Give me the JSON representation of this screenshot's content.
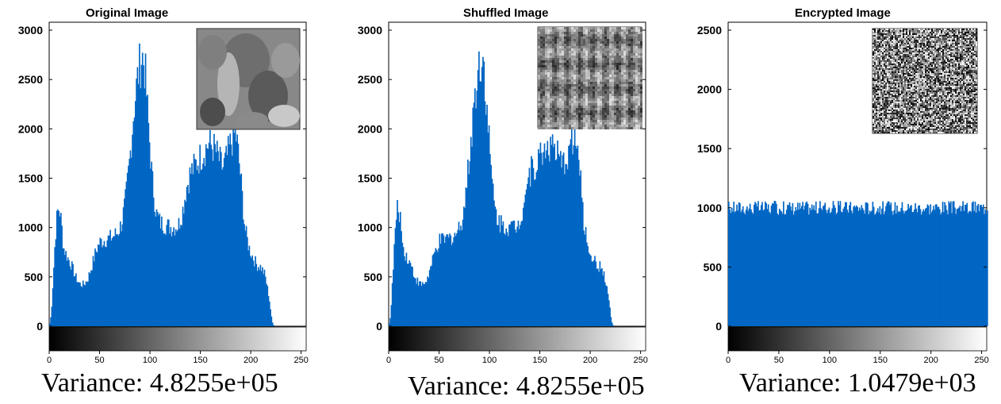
{
  "colors": {
    "bar": "#0066c4",
    "axis": "#000000",
    "background": "#ffffff"
  },
  "chart_data": [
    {
      "type": "bar",
      "title": "Original Image",
      "xlabel": "",
      "ylabel": "",
      "xlim": [
        0,
        255
      ],
      "ylim": [
        0,
        3000
      ],
      "yticks": [
        0,
        500,
        1000,
        1500,
        2000,
        2500,
        3000
      ],
      "xticks": [
        0,
        50,
        100,
        150,
        200,
        250
      ],
      "colorbar": "grayscale 0-255 below x axis",
      "inset": "grayscale peppers image, top-right",
      "variance_label": "Variance: 4.8255e+05",
      "profile": [
        [
          0,
          0
        ],
        [
          2,
          120
        ],
        [
          4,
          500
        ],
        [
          6,
          900
        ],
        [
          8,
          1150
        ],
        [
          10,
          1200
        ],
        [
          12,
          1050
        ],
        [
          14,
          800
        ],
        [
          18,
          700
        ],
        [
          22,
          620
        ],
        [
          26,
          500
        ],
        [
          30,
          430
        ],
        [
          34,
          420
        ],
        [
          38,
          470
        ],
        [
          42,
          600
        ],
        [
          46,
          750
        ],
        [
          50,
          850
        ],
        [
          56,
          880
        ],
        [
          62,
          900
        ],
        [
          68,
          950
        ],
        [
          72,
          1050
        ],
        [
          76,
          1300
        ],
        [
          80,
          1700
        ],
        [
          84,
          2200
        ],
        [
          88,
          2550
        ],
        [
          92,
          2750
        ],
        [
          95,
          2600
        ],
        [
          98,
          2100
        ],
        [
          102,
          1500
        ],
        [
          106,
          1150
        ],
        [
          110,
          1050
        ],
        [
          116,
          1020
        ],
        [
          122,
          1000
        ],
        [
          128,
          1020
        ],
        [
          132,
          1150
        ],
        [
          136,
          1400
        ],
        [
          140,
          1550
        ],
        [
          146,
          1650
        ],
        [
          152,
          1750
        ],
        [
          158,
          1850
        ],
        [
          164,
          1800
        ],
        [
          168,
          1700
        ],
        [
          172,
          1600
        ],
        [
          176,
          1700
        ],
        [
          180,
          1850
        ],
        [
          184,
          1950
        ],
        [
          186,
          1900
        ],
        [
          190,
          1500
        ],
        [
          194,
          1000
        ],
        [
          198,
          800
        ],
        [
          202,
          700
        ],
        [
          206,
          620
        ],
        [
          210,
          600
        ],
        [
          214,
          520
        ],
        [
          218,
          300
        ],
        [
          221,
          50
        ],
        [
          223,
          0
        ],
        [
          255,
          0
        ]
      ]
    },
    {
      "type": "bar",
      "title": "Shuffled Image",
      "xlabel": "",
      "ylabel": "",
      "xlim": [
        0,
        255
      ],
      "ylim": [
        0,
        3000
      ],
      "yticks": [
        0,
        500,
        1000,
        1500,
        2000,
        2500,
        3000
      ],
      "xticks": [
        0,
        50,
        100,
        150,
        200,
        250
      ],
      "colorbar": "grayscale 0-255 below x axis",
      "inset": "shuffled noise image, top-right",
      "variance_label": "Variance: 4.8255e+05",
      "profile": [
        [
          0,
          0
        ],
        [
          2,
          120
        ],
        [
          4,
          500
        ],
        [
          6,
          900
        ],
        [
          8,
          1150
        ],
        [
          10,
          1200
        ],
        [
          12,
          1050
        ],
        [
          14,
          800
        ],
        [
          18,
          700
        ],
        [
          22,
          620
        ],
        [
          26,
          500
        ],
        [
          30,
          430
        ],
        [
          34,
          420
        ],
        [
          38,
          470
        ],
        [
          42,
          600
        ],
        [
          46,
          750
        ],
        [
          50,
          850
        ],
        [
          56,
          880
        ],
        [
          62,
          900
        ],
        [
          68,
          950
        ],
        [
          72,
          1050
        ],
        [
          76,
          1300
        ],
        [
          80,
          1700
        ],
        [
          84,
          2200
        ],
        [
          88,
          2550
        ],
        [
          92,
          2750
        ],
        [
          95,
          2600
        ],
        [
          98,
          2100
        ],
        [
          102,
          1500
        ],
        [
          106,
          1150
        ],
        [
          110,
          1050
        ],
        [
          116,
          1020
        ],
        [
          122,
          1000
        ],
        [
          128,
          1020
        ],
        [
          132,
          1150
        ],
        [
          136,
          1400
        ],
        [
          140,
          1550
        ],
        [
          146,
          1650
        ],
        [
          152,
          1750
        ],
        [
          158,
          1850
        ],
        [
          164,
          1800
        ],
        [
          168,
          1700
        ],
        [
          172,
          1600
        ],
        [
          176,
          1700
        ],
        [
          180,
          1850
        ],
        [
          184,
          1950
        ],
        [
          186,
          1900
        ],
        [
          190,
          1500
        ],
        [
          194,
          1000
        ],
        [
          198,
          800
        ],
        [
          202,
          700
        ],
        [
          206,
          620
        ],
        [
          210,
          600
        ],
        [
          214,
          520
        ],
        [
          218,
          300
        ],
        [
          221,
          50
        ],
        [
          223,
          0
        ],
        [
          255,
          0
        ]
      ]
    },
    {
      "type": "bar",
      "title": "Encrypted Image",
      "xlabel": "",
      "ylabel": "",
      "xlim": [
        0,
        255
      ],
      "ylim": [
        0,
        2500
      ],
      "yticks": [
        0,
        500,
        1000,
        1500,
        2000,
        2500
      ],
      "xticks": [
        0,
        50,
        100,
        150,
        200,
        250
      ],
      "colorbar": "grayscale 0-255 below x axis",
      "inset": "random noise image, top-right",
      "variance_label": "Variance:  1.0479e+03",
      "profile": [
        [
          0,
          1000
        ],
        [
          255,
          1000
        ]
      ]
    }
  ]
}
